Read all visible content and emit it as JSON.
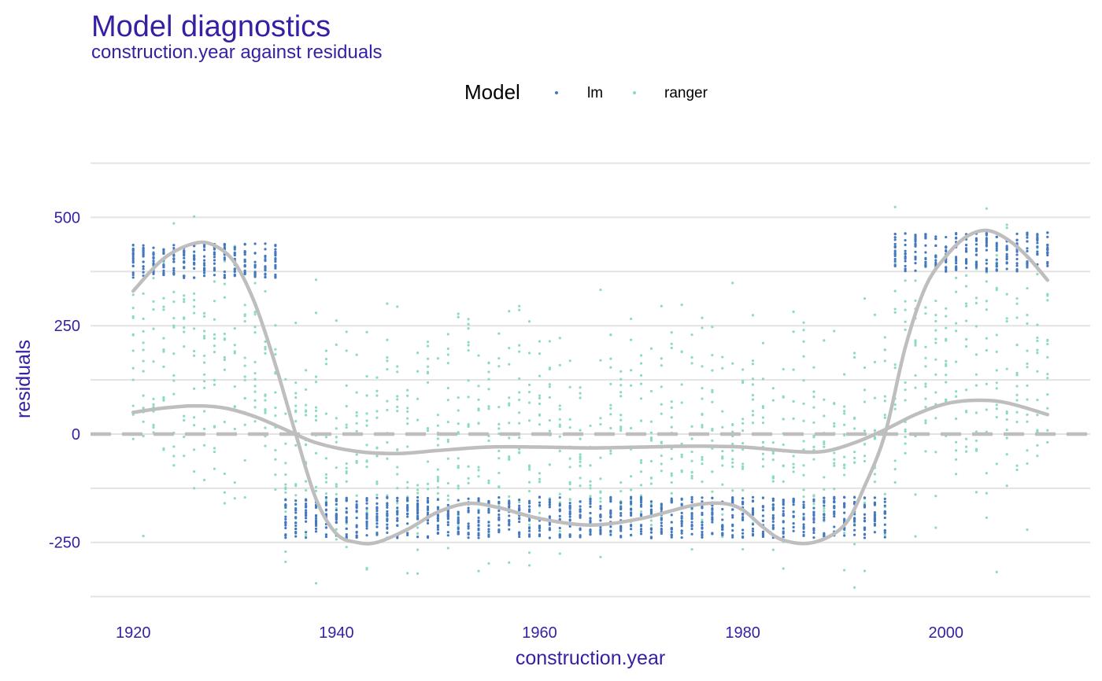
{
  "title": "Model diagnostics",
  "subtitle": "construction.year against residuals",
  "colors": {
    "title": "#371ea3",
    "lm": "#4378bf",
    "ranger": "#8bdcbe",
    "smooth": "#bebebe",
    "grid": "#e3e3e3"
  },
  "chart_data": {
    "type": "scatter",
    "title": "Model diagnostics",
    "subtitle": "construction.year against residuals",
    "xlabel": "construction.year",
    "ylabel": "residuals",
    "xlim": [
      1915.8,
      2014.2
    ],
    "ylim": [
      -432,
      675
    ],
    "x_ticks": [
      1920,
      1940,
      1960,
      1980,
      2000
    ],
    "x_tick_labels": [
      "1920",
      "1940",
      "1960",
      "1980",
      "2000"
    ],
    "y_ticks": [
      -250,
      0,
      250,
      500
    ],
    "y_tick_labels": [
      "-250",
      "0",
      "250",
      "500"
    ],
    "y_minor_gridlines": [
      -375,
      -125,
      125,
      375,
      625
    ],
    "grid": "horizontal",
    "reference_line": {
      "y": 0,
      "style": "dashed"
    },
    "legend": {
      "title": "Model",
      "position": "top",
      "entries": [
        "lm",
        "ranger"
      ]
    },
    "series": [
      {
        "name": "lm",
        "kind": "points",
        "clusters": [
          {
            "x_range": [
              1920,
              1934
            ],
            "y_range": [
              360,
              440
            ]
          },
          {
            "x_range": [
              1935,
              1994
            ],
            "y_range": [
              -240,
              -145
            ]
          },
          {
            "x_range": [
              1995,
              2010
            ],
            "y_range": [
              375,
              465
            ]
          }
        ]
      },
      {
        "name": "ranger",
        "kind": "points",
        "clusters": [
          {
            "x_range": [
              1920,
              1934
            ],
            "y_range": [
              -270,
              560
            ]
          },
          {
            "x_range": [
              1935,
              1994
            ],
            "y_range": [
              -405,
              375
            ]
          },
          {
            "x_range": [
              1995,
              2010
            ],
            "y_range": [
              -330,
              640
            ]
          }
        ]
      }
    ],
    "smooth_lines": [
      {
        "series": "lm",
        "x": [
          1920,
          1923,
          1926,
          1928,
          1930,
          1932,
          1934,
          1936,
          1938,
          1940,
          1942,
          1944,
          1947,
          1950,
          1953,
          1956,
          1960,
          1965,
          1970,
          1975,
          1978,
          1980,
          1982,
          1984,
          1987,
          1990,
          1992,
          1994,
          1996,
          1998,
          2000,
          2002,
          2004,
          2006,
          2008,
          2010
        ],
        "y": [
          330,
          405,
          440,
          435,
          395,
          300,
          160,
          0,
          -150,
          -230,
          -250,
          -250,
          -220,
          -180,
          -160,
          -170,
          -195,
          -210,
          -195,
          -165,
          -160,
          -175,
          -215,
          -245,
          -250,
          -210,
          -120,
          0,
          200,
          340,
          410,
          455,
          470,
          450,
          410,
          355
        ]
      },
      {
        "series": "ranger",
        "x": [
          1920,
          1923,
          1926,
          1929,
          1932,
          1935,
          1938,
          1942,
          1946,
          1950,
          1955,
          1960,
          1965,
          1970,
          1975,
          1980,
          1985,
          1988,
          1991,
          1994,
          1997,
          2000,
          2003,
          2006,
          2010
        ],
        "y": [
          50,
          60,
          65,
          60,
          40,
          10,
          -20,
          -40,
          -45,
          -38,
          -30,
          -30,
          -32,
          -30,
          -28,
          -30,
          -40,
          -40,
          -20,
          10,
          45,
          70,
          78,
          72,
          45
        ]
      }
    ]
  }
}
